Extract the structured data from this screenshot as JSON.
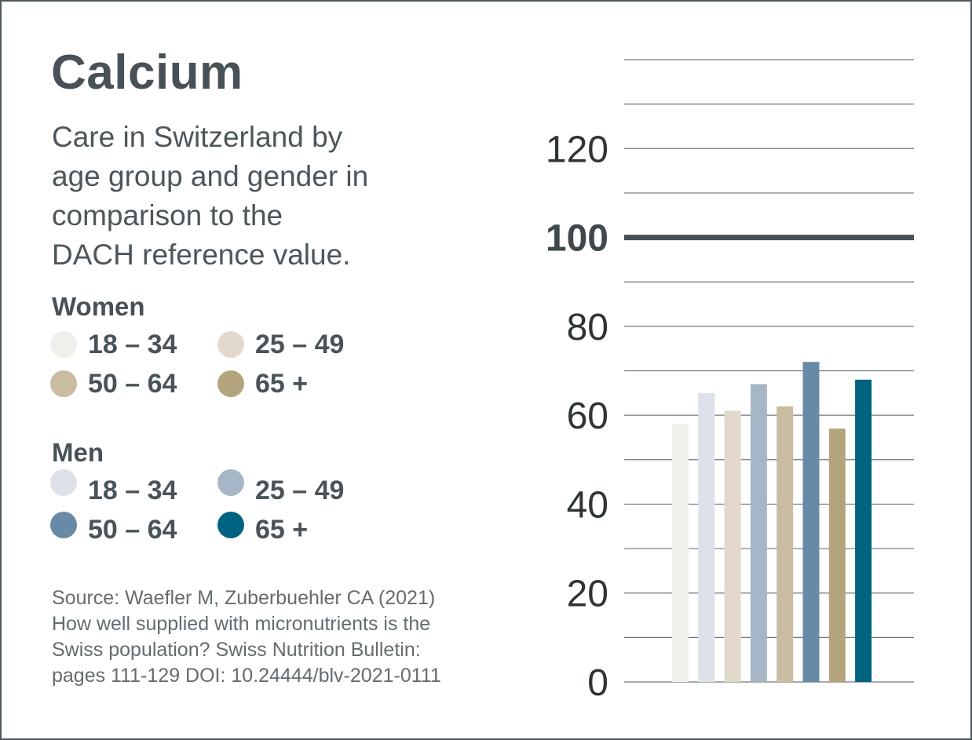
{
  "title": "Calcium",
  "subtitle": [
    "Care in Switzerland by",
    "age group and gender in",
    "comparison to the",
    "DACH reference value."
  ],
  "legend": {
    "women_heading": "Women",
    "men_heading": "Men",
    "women": [
      {
        "label": "18 – 34",
        "color": "#f1efea"
      },
      {
        "label": "25 – 49",
        "color": "#e1d9cc"
      },
      {
        "label": "50 – 64",
        "color": "#c9bca0"
      },
      {
        "label": "65 +",
        "color": "#b3a47b"
      }
    ],
    "men": [
      {
        "label": "18 – 34",
        "color": "#dde1ea"
      },
      {
        "label": "25 – 49",
        "color": "#a7b6c6"
      },
      {
        "label": "50 – 64",
        "color": "#678ba6"
      },
      {
        "label": "65 +",
        "color": "#00637f"
      }
    ]
  },
  "source": [
    "Source: Waefler M, Zuberbuehler CA (2021)",
    "How well supplied with micronutrients is the",
    "Swiss population? Swiss Nutrition Bulletin:",
    "pages 111-129 DOI: 10.24444/blv-2021-0111"
  ],
  "chart_data": {
    "type": "bar",
    "ylim": [
      0,
      140
    ],
    "yticks": [
      0,
      20,
      40,
      60,
      80,
      100,
      120
    ],
    "grid_step": 10,
    "reference_line": 100,
    "bars": [
      {
        "series": "Women 18 – 34",
        "value": 58,
        "color": "#f1efea"
      },
      {
        "series": "Men 18 – 34",
        "value": 65,
        "color": "#dde1ea"
      },
      {
        "series": "Women 25 – 49",
        "value": 61,
        "color": "#e1d9cc"
      },
      {
        "series": "Men 25 – 49",
        "value": 67,
        "color": "#a7b6c6"
      },
      {
        "series": "Women 50 – 64",
        "value": 62,
        "color": "#c9bca0"
      },
      {
        "series": "Men 50 – 64",
        "value": 72,
        "color": "#678ba6"
      },
      {
        "series": "Women 65 +",
        "value": 57,
        "color": "#b3a47b"
      },
      {
        "series": "Men 65 +",
        "value": 68,
        "color": "#00637f"
      }
    ]
  }
}
